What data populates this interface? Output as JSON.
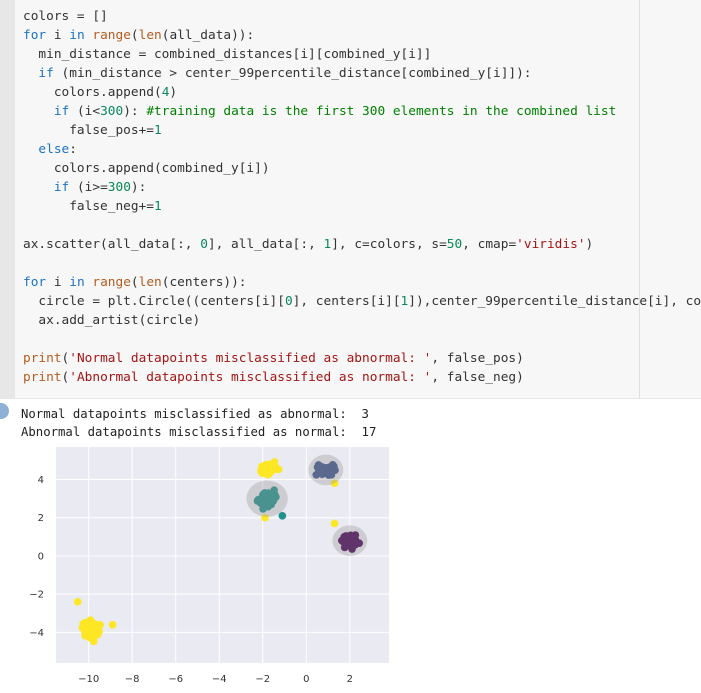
{
  "code_lines": [
    [
      [
        "colors = []",
        ""
      ]
    ],
    [
      [
        "for",
        "kw"
      ],
      [
        " i ",
        ""
      ],
      [
        "in",
        "kw"
      ],
      [
        " ",
        ""
      ],
      [
        "range",
        "bi"
      ],
      [
        "(",
        ""
      ],
      [
        "len",
        "bi"
      ],
      [
        "(all_data)):",
        ""
      ]
    ],
    [
      [
        "  min_distance = combined_distances[i][combined_y[i]]",
        ""
      ]
    ],
    [
      [
        "  ",
        ""
      ],
      [
        "if",
        "kw"
      ],
      [
        " (min_distance > center_99percentile_distance[combined_y[i]]):",
        ""
      ]
    ],
    [
      [
        "    colors.append(",
        ""
      ],
      [
        "4",
        "num"
      ],
      [
        ")",
        ""
      ]
    ],
    [
      [
        "    ",
        ""
      ],
      [
        "if",
        "kw"
      ],
      [
        " (i<",
        ""
      ],
      [
        "300",
        "num"
      ],
      [
        "): ",
        ""
      ],
      [
        "#training data is the first 300 elements in the combined list",
        "com"
      ]
    ],
    [
      [
        "      false_pos+=",
        ""
      ],
      [
        "1",
        "num"
      ]
    ],
    [
      [
        "  ",
        ""
      ],
      [
        "else",
        "kw"
      ],
      [
        ":",
        ""
      ]
    ],
    [
      [
        "    colors.append(combined_y[i])",
        ""
      ]
    ],
    [
      [
        "    ",
        ""
      ],
      [
        "if",
        "kw"
      ],
      [
        " (i>=",
        ""
      ],
      [
        "300",
        "num"
      ],
      [
        "):",
        ""
      ]
    ],
    [
      [
        "      false_neg+=",
        ""
      ],
      [
        "1",
        "num"
      ]
    ],
    [
      [
        "",
        ""
      ]
    ],
    [
      [
        "ax.scatter(all_data[:, ",
        ""
      ],
      [
        "0",
        "num"
      ],
      [
        "], all_data[:, ",
        ""
      ],
      [
        "1",
        "num"
      ],
      [
        "], c=colors, s=",
        ""
      ],
      [
        "50",
        "num"
      ],
      [
        ", cmap=",
        ""
      ],
      [
        "'viridis'",
        "str"
      ],
      [
        ")",
        ""
      ]
    ],
    [
      [
        "",
        ""
      ]
    ],
    [
      [
        "for",
        "kw"
      ],
      [
        " i ",
        ""
      ],
      [
        "in",
        "kw"
      ],
      [
        " ",
        ""
      ],
      [
        "range",
        "bi"
      ],
      [
        "(",
        ""
      ],
      [
        "len",
        "bi"
      ],
      [
        "(centers)):",
        ""
      ]
    ],
    [
      [
        "  circle = plt.Circle((centers[i][",
        ""
      ],
      [
        "0",
        "num"
      ],
      [
        "], centers[i][",
        ""
      ],
      [
        "1",
        "num"
      ],
      [
        "]),center_99percentile_distance[i], co",
        ""
      ]
    ],
    [
      [
        "  ax.add_artist(circle)",
        ""
      ]
    ],
    [
      [
        "",
        ""
      ]
    ],
    [
      [
        "print",
        "bi"
      ],
      [
        "(",
        ""
      ],
      [
        "'Normal datapoints misclassified as abnormal: '",
        "str"
      ],
      [
        ", false_pos)",
        ""
      ]
    ],
    [
      [
        "print",
        "bi"
      ],
      [
        "(",
        ""
      ],
      [
        "'Abnormal datapoints misclassified as normal: '",
        "str"
      ],
      [
        ", false_neg)",
        ""
      ]
    ]
  ],
  "output": {
    "line1": "Normal datapoints misclassified as abnormal:  3",
    "line2": "Abnormal datapoints misclassified as normal:  17"
  },
  "colors": {
    "yellow": "#fde725",
    "teal": "#21918c",
    "navy": "#3b528b",
    "purple": "#440154",
    "plot_bg": "#eaeaf2"
  },
  "chart_data": {
    "type": "scatter",
    "xlim": [
      -11.5,
      3.8
    ],
    "ylim": [
      -5.6,
      5.7
    ],
    "xticks": [
      -10,
      -8,
      -6,
      -4,
      -2,
      0,
      2
    ],
    "yticks": [
      4,
      2,
      0,
      -2,
      -4
    ],
    "grid": true,
    "clusters": [
      {
        "color": "yellow",
        "cx": -1.7,
        "cy": 4.6,
        "sx": 0.35,
        "sy": 0.25,
        "n": 60
      },
      {
        "color": "teal",
        "cx": -1.8,
        "cy": 3.0,
        "sx": 0.35,
        "sy": 0.35,
        "n": 55
      },
      {
        "color": "navy",
        "cx": 0.9,
        "cy": 4.5,
        "sx": 0.35,
        "sy": 0.3,
        "n": 50
      },
      {
        "color": "purple",
        "cx": 2.0,
        "cy": 0.8,
        "sx": 0.35,
        "sy": 0.3,
        "n": 55
      },
      {
        "color": "yellow",
        "cx": -9.9,
        "cy": -3.9,
        "sx": 0.4,
        "sy": 0.4,
        "n": 60
      }
    ],
    "circles": [
      {
        "cx": -1.8,
        "cy": 3.0,
        "r": 0.95
      },
      {
        "cx": 0.9,
        "cy": 4.5,
        "r": 0.8
      },
      {
        "cx": 2.0,
        "cy": 0.8,
        "r": 0.8
      }
    ],
    "outliers": [
      {
        "color": "yellow",
        "x": -1.9,
        "y": 2.0
      },
      {
        "color": "yellow",
        "x": 1.3,
        "y": 3.8
      },
      {
        "color": "yellow",
        "x": 1.3,
        "y": 1.7
      },
      {
        "color": "yellow",
        "x": -10.5,
        "y": -2.4
      },
      {
        "color": "yellow",
        "x": -8.9,
        "y": -3.6
      },
      {
        "color": "teal",
        "x": -1.1,
        "y": 2.1
      }
    ]
  }
}
